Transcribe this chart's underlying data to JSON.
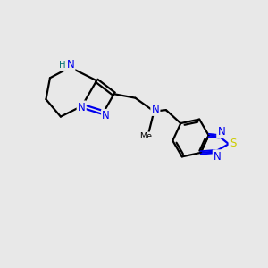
{
  "background_color": "#e8e8e8",
  "bond_color": "#000000",
  "N_color": "#0000ee",
  "S_color": "#cccc00",
  "H_color": "#007070",
  "line_width": 1.6,
  "font_size_atom": 8.5,
  "fig_size": [
    3.0,
    3.0
  ],
  "dpi": 100,
  "xlim": [
    0,
    10
  ],
  "ylim": [
    0,
    10
  ]
}
